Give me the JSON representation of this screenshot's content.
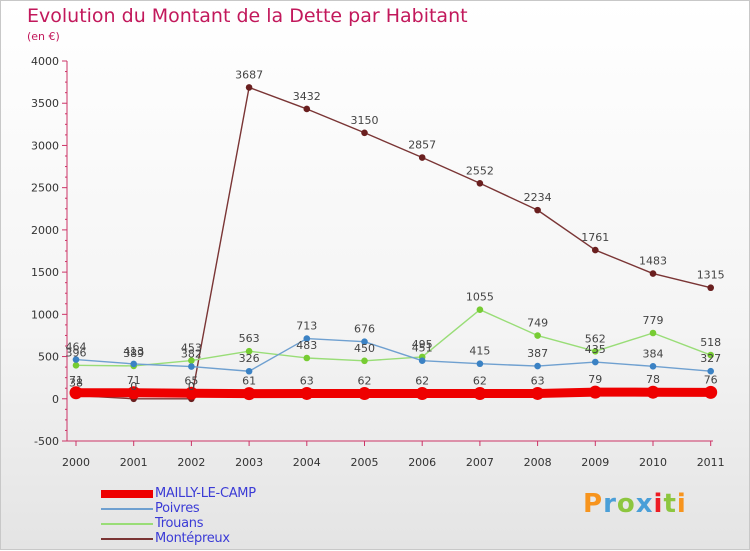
{
  "header": {
    "title": "Evolution du Montant de la Dette par Habitant",
    "subtitle": "(en €)"
  },
  "logo": {
    "text": "Proxiti",
    "letter_colors": [
      "#f7941d",
      "#4a9fd8",
      "#8dc63f",
      "#4a9fd8",
      "#ed1c24",
      "#8dc63f",
      "#f7941d"
    ]
  },
  "chart_data": {
    "type": "line",
    "title": "Evolution du Montant de la Dette par Habitant",
    "subtitle": "(en €)",
    "xlabel": "",
    "ylabel": "",
    "x": [
      "2000",
      "2001",
      "2002",
      "2003",
      "2004",
      "2005",
      "2006",
      "2007",
      "2008",
      "2009",
      "2010",
      "2011"
    ],
    "ylim": [
      -500,
      4000
    ],
    "yticks": [
      -500,
      0,
      500,
      1000,
      1500,
      2000,
      2500,
      3000,
      3500,
      4000
    ],
    "grid": false,
    "legend_position": "bottom-left",
    "series": [
      {
        "name": "MAILLY-LE-CAMP",
        "color": "#ee0000",
        "values": [
          71,
          71,
          65,
          61,
          63,
          62,
          62,
          62,
          63,
          79,
          78,
          76
        ]
      },
      {
        "name": "Poivres",
        "color": "#6fa0d0",
        "point_color": "#3b82c4",
        "values": [
          464,
          413,
          382,
          326,
          713,
          676,
          451,
          415,
          387,
          435,
          384,
          327
        ]
      },
      {
        "name": "Trouans",
        "color": "#99dd77",
        "point_color": "#77cc33",
        "values": [
          396,
          389,
          453,
          563,
          483,
          450,
          495,
          1055,
          749,
          562,
          779,
          518
        ]
      },
      {
        "name": "Montépreux",
        "color": "#7a3535",
        "point_color": "#6a1f1f",
        "values": [
          38,
          0,
          0,
          3687,
          3432,
          3150,
          2857,
          2552,
          2234,
          1761,
          1483,
          1315
        ]
      }
    ]
  }
}
